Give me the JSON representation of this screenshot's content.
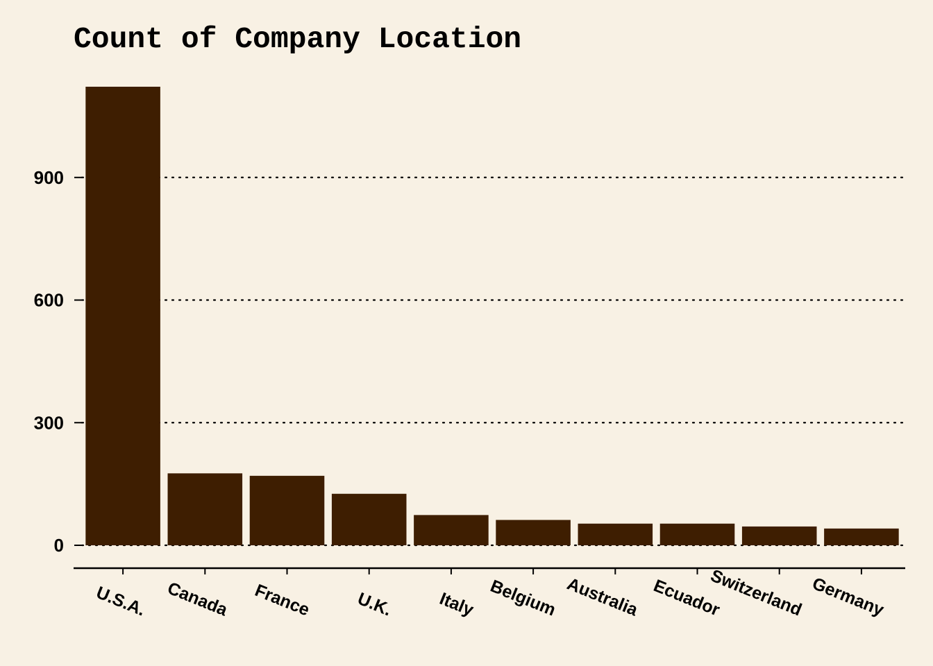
{
  "chart_data": {
    "type": "bar",
    "title": "Count of Company Location",
    "xlabel": "",
    "ylabel": "",
    "categories": [
      "U.S.A.",
      "Canada",
      "France",
      "U.K.",
      "Italy",
      "Belgium",
      "Australia",
      "Ecuador",
      "Switzerland",
      "Germany"
    ],
    "values": [
      1122,
      176,
      170,
      126,
      74,
      62,
      53,
      53,
      46,
      41
    ],
    "yticks": [
      0,
      300,
      600,
      900
    ],
    "ylim": [
      0,
      1122
    ],
    "grid": "horizontal-dotted",
    "legend": "none",
    "bar_color": "#3e1e01",
    "background_color": "#f8f1e4"
  }
}
